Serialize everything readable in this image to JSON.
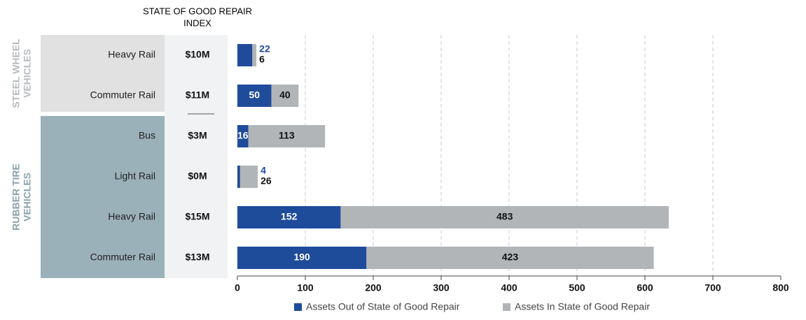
{
  "chart_data": {
    "type": "stacked_barh",
    "index_header": [
      "STATE OF GOOD REPAIR",
      "INDEX"
    ],
    "groups": [
      {
        "label": [
          "STEEL WHEEL",
          "VEHICLES"
        ],
        "color": "#e1e1e1",
        "label_color": "#b8bcbf",
        "categories": [
          "Heavy Rail",
          "Commuter Rail"
        ],
        "index": [
          "$10M",
          "$11M"
        ]
      },
      {
        "label": [
          "RUBBER TIRE",
          "VEHICLES"
        ],
        "color": "#9bb1ba",
        "label_color": "#8aa3ad",
        "categories": [
          "Bus",
          "Light Rail",
          "Heavy Rail",
          "Commuter Rail"
        ],
        "index": [
          "$3M",
          "$0M",
          "$15M",
          "$13M"
        ]
      }
    ],
    "series": [
      {
        "name": "Assets Out of State of Good Repair",
        "color": "#1f4b9b",
        "values": [
          22,
          50,
          16,
          4,
          152,
          190
        ]
      },
      {
        "name": "Assets In State of Good Repair",
        "color": "#b1b5b8",
        "values": [
          6,
          40,
          113,
          26,
          483,
          423
        ]
      }
    ],
    "xlim": [
      0,
      800
    ],
    "xticks": [
      0,
      100,
      200,
      300,
      400,
      500,
      600,
      700,
      800
    ],
    "grid": true
  }
}
